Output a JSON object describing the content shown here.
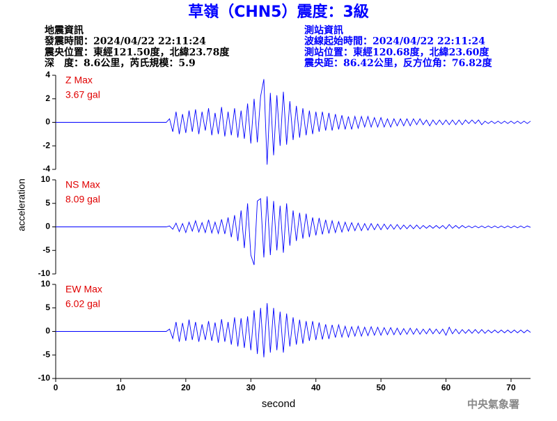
{
  "header": {
    "left": [
      "地震資訊",
      "發震時間：2024/04/22 22:11:24",
      "震央位置：東經121.50度，北緯23.78度",
      "深　度：8.6公里，芮氏規模：5.9"
    ],
    "right": [
      "測站資訊",
      "波線起始時間：2024/04/22 22:11:24",
      "測站位置：東經120.68度，北緯23.60度",
      "震央距：86.42公里，反方位角：76.82度"
    ],
    "footer": "中央氣象署"
  },
  "chart_data": {
    "type": "line",
    "title": "草嶺（CHN5）震度：3級",
    "xlabel": "second",
    "ylabel": "acceleration",
    "xlim": [
      0,
      73
    ],
    "xticks": [
      0,
      10,
      20,
      30,
      40,
      50,
      60,
      70
    ],
    "x": [
      0,
      17,
      17.5,
      18,
      18.5,
      19,
      19.5,
      20,
      20.5,
      21,
      21.5,
      22,
      22.5,
      23,
      23.5,
      24,
      24.5,
      25,
      25.5,
      26,
      26.5,
      27,
      27.5,
      28,
      28.5,
      29,
      29.5,
      30,
      30.5,
      31,
      31.5,
      32,
      32.5,
      33,
      33.5,
      34,
      34.5,
      35,
      35.5,
      36,
      36.5,
      37,
      37.5,
      38,
      38.5,
      39,
      39.5,
      40,
      40.5,
      41,
      41.5,
      42,
      42.5,
      43,
      43.5,
      44,
      44.5,
      45,
      45.5,
      46,
      46.5,
      47,
      47.5,
      48,
      48.5,
      49,
      49.5,
      50,
      50.5,
      51,
      51.5,
      52,
      52.5,
      53,
      53.5,
      54,
      54.5,
      55,
      55.5,
      56,
      56.5,
      57,
      57.5,
      58,
      58.5,
      59,
      59.5,
      60,
      60.5,
      61,
      61.5,
      62,
      62.5,
      63,
      63.5,
      64,
      64.5,
      65,
      65.5,
      66,
      66.5,
      67,
      67.5,
      68,
      68.5,
      69,
      69.5,
      70,
      70.5,
      71,
      71.5,
      72,
      72.5,
      73
    ],
    "series": [
      {
        "name": "Z Max",
        "annotation": "3.67 gal",
        "color": "#0000ff",
        "ylim": [
          -4,
          4
        ],
        "yticks": [
          -4,
          -2,
          0,
          2,
          4
        ],
        "values": [
          0,
          0,
          0.3,
          -0.8,
          0.9,
          -1.0,
          0.7,
          -0.9,
          1.0,
          -0.8,
          1.1,
          -1.0,
          0.9,
          -0.7,
          1.2,
          -1.1,
          0.8,
          -1.0,
          1.3,
          -1.2,
          0.9,
          -1.1,
          1.2,
          -1.3,
          1.0,
          -1.4,
          1.6,
          -1.8,
          2.0,
          -1.7,
          2.2,
          3.67,
          -3.6,
          2.5,
          -2.8,
          2.3,
          -2.0,
          2.6,
          -1.9,
          1.8,
          -1.5,
          1.4,
          -1.3,
          1.2,
          -1.1,
          1.0,
          -1.0,
          0.9,
          -0.8,
          0.9,
          -0.7,
          0.8,
          -0.7,
          0.7,
          -0.6,
          0.6,
          -0.6,
          0.5,
          -0.6,
          0.5,
          -0.5,
          0.5,
          -0.4,
          0.5,
          -0.4,
          0.4,
          -0.4,
          0.4,
          -0.4,
          0.3,
          -0.4,
          0.3,
          -0.3,
          0.3,
          -0.3,
          0.3,
          -0.3,
          0.3,
          -0.2,
          0.3,
          -0.2,
          0.2,
          -0.3,
          0.2,
          -0.2,
          0.2,
          -0.2,
          0.2,
          -0.2,
          0.2,
          -0.2,
          0.2,
          -0.2,
          0.2,
          -0.1,
          0.2,
          -0.1,
          0.2,
          -0.2,
          0.1,
          -0.1,
          0.1,
          -0.1,
          0.1,
          -0.1,
          0.1,
          -0.1,
          0.1,
          -0.1,
          0.1,
          -0.1,
          0.1,
          -0.1,
          0.1
        ]
      },
      {
        "name": "NS Max",
        "annotation": "8.09 gal",
        "color": "#0000ff",
        "ylim": [
          -10,
          10
        ],
        "yticks": [
          -10,
          -5,
          0,
          5,
          10
        ],
        "values": [
          0,
          0,
          0.2,
          -0.5,
          0.8,
          -1.0,
          0.7,
          -1.2,
          1.0,
          -0.9,
          1.3,
          -1.1,
          0.9,
          -1.2,
          1.5,
          -1.3,
          1.0,
          -1.4,
          1.6,
          -1.5,
          2.0,
          -2.2,
          2.5,
          -3.0,
          3.5,
          -4.5,
          5.0,
          -6.0,
          -8.09,
          5.5,
          6.0,
          -6.5,
          6.5,
          -6.0,
          5.5,
          -5.0,
          4.5,
          -5.5,
          5.0,
          -4.0,
          3.5,
          -3.0,
          3.0,
          -2.5,
          2.8,
          -2.2,
          2.0,
          -1.8,
          1.9,
          -1.6,
          1.5,
          -1.4,
          1.3,
          -1.2,
          1.1,
          -1.1,
          1.0,
          -0.9,
          0.9,
          -0.8,
          0.8,
          -0.8,
          0.7,
          -0.7,
          0.7,
          -0.6,
          0.6,
          -0.6,
          0.6,
          -0.5,
          0.5,
          -0.5,
          0.5,
          -0.5,
          0.4,
          -0.4,
          0.4,
          -0.4,
          0.4,
          -0.4,
          0.3,
          -0.3,
          0.3,
          -0.3,
          0.3,
          -0.3,
          0.3,
          -0.4,
          0.5,
          -0.3,
          0.3,
          -0.3,
          0.3,
          -0.2,
          0.2,
          -0.2,
          0.2,
          -0.2,
          0.2,
          -0.2,
          0.2,
          -0.2,
          0.2,
          -0.2,
          0.2,
          -0.2,
          0.2,
          -0.2,
          0.2,
          -0.2,
          0.2,
          -0.2,
          0.2,
          -0.1
        ]
      },
      {
        "name": "EW Max",
        "annotation": "6.02 gal",
        "color": "#0000ff",
        "ylim": [
          -10,
          10
        ],
        "yticks": [
          -10,
          -5,
          0,
          5,
          10
        ],
        "values": [
          0,
          0,
          0.5,
          -1.5,
          2.0,
          -2.2,
          1.8,
          -2.0,
          2.5,
          -1.8,
          2.0,
          -2.2,
          1.5,
          -1.8,
          2.2,
          -2.0,
          1.9,
          -2.4,
          2.6,
          -2.2,
          2.0,
          -2.8,
          3.0,
          -3.2,
          2.8,
          -3.5,
          3.2,
          -4.0,
          4.5,
          -4.8,
          5.0,
          -5.5,
          6.02,
          -4.5,
          5.0,
          -4.0,
          4.2,
          -4.5,
          3.8,
          -3.2,
          3.0,
          -2.8,
          2.5,
          -2.6,
          2.2,
          -2.0,
          2.2,
          -1.8,
          1.9,
          -1.7,
          1.5,
          -1.6,
          1.4,
          -1.3,
          1.4,
          -1.2,
          1.1,
          -1.2,
          1.0,
          -1.0,
          1.1,
          -1.0,
          0.9,
          -0.9,
          1.0,
          -0.8,
          0.9,
          -0.8,
          0.8,
          -0.7,
          0.8,
          -0.7,
          0.7,
          -0.7,
          0.6,
          -0.6,
          0.7,
          -0.6,
          0.6,
          -0.6,
          0.5,
          -0.5,
          0.6,
          -0.5,
          0.5,
          -0.5,
          0.5,
          -0.8,
          0.9,
          -0.5,
          0.5,
          -0.5,
          0.4,
          -0.4,
          0.4,
          -0.4,
          0.4,
          -0.4,
          0.4,
          -0.4,
          0.3,
          -0.3,
          0.3,
          -0.3,
          0.3,
          -0.3,
          0.3,
          -0.3,
          0.3,
          -0.3,
          0.3,
          -0.3,
          0.3,
          -0.2
        ]
      }
    ]
  }
}
